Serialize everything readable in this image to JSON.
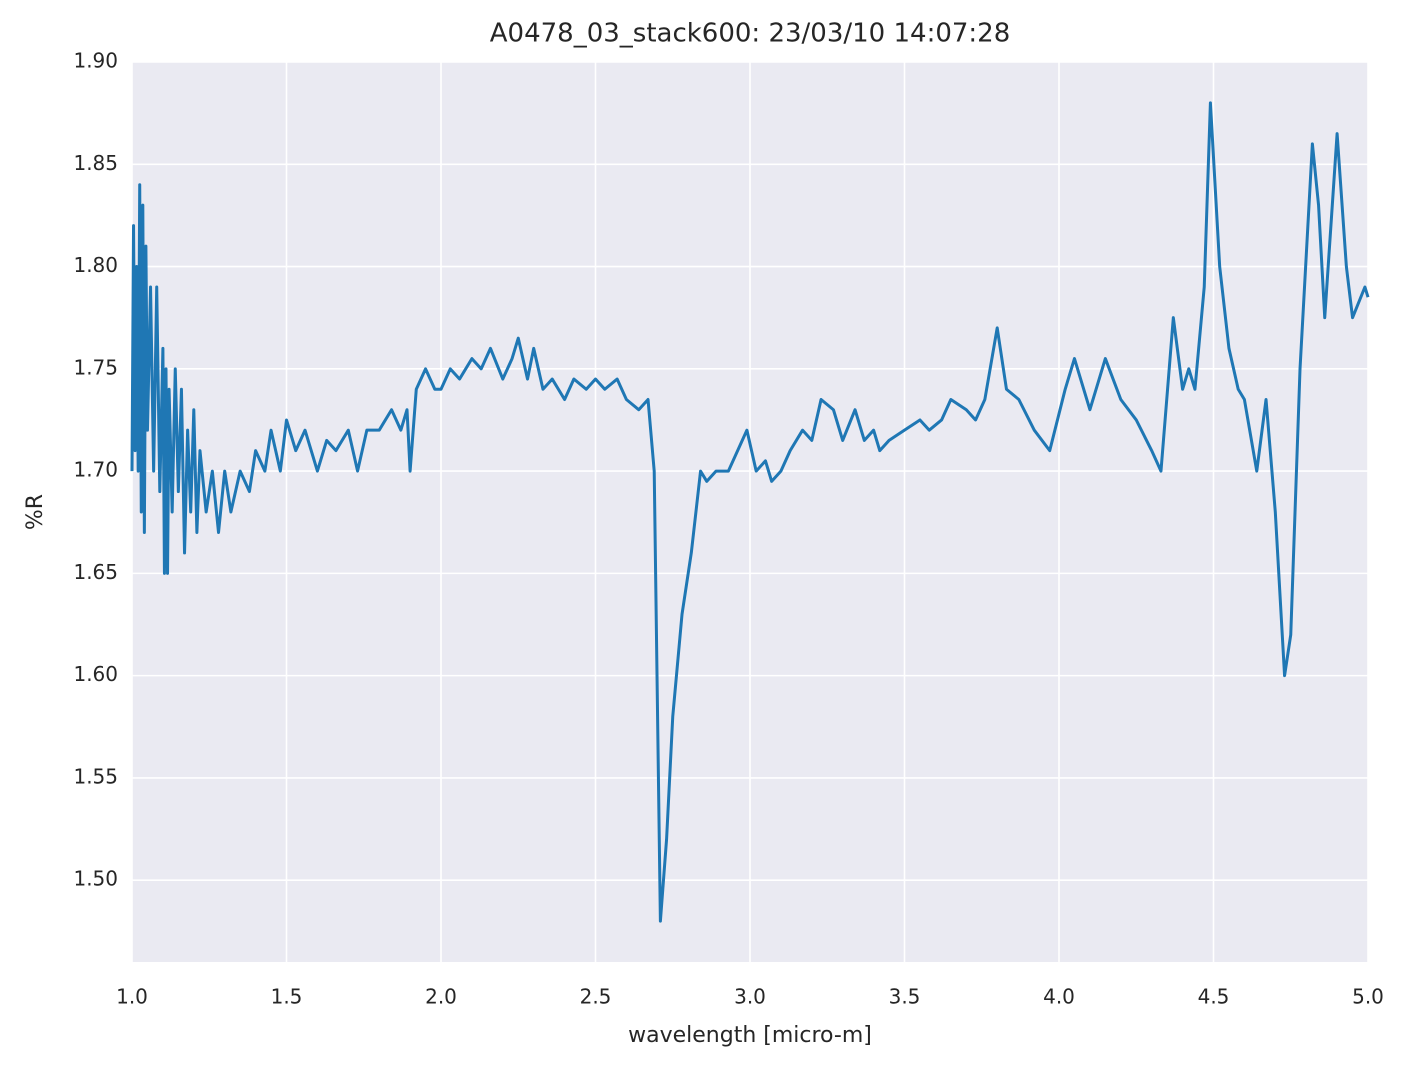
{
  "chart_data": {
    "type": "line",
    "title": "A0478_03_stack600:  23/03/10 14:07:28",
    "xlabel": "wavelength [micro-m]",
    "ylabel": "%R",
    "color": "#1f77b4",
    "grid": true,
    "xlim": [
      1.0,
      5.0
    ],
    "xticks": [
      {
        "value": 1.0,
        "label": "1.0"
      },
      1.5,
      {
        "value": 2.0,
        "label": "2.0"
      },
      2.5,
      {
        "value": 3.0,
        "label": "3.0"
      },
      3.5,
      {
        "value": 4.0,
        "label": "4.0"
      },
      4.5,
      {
        "value": 5.0,
        "label": "5.0"
      }
    ],
    "ylim": [
      1.46,
      1.9
    ],
    "yticks": [
      {
        "value": 1.5,
        "label": "1.50"
      },
      1.55,
      {
        "value": 1.6,
        "label": "1.60"
      },
      1.65,
      {
        "value": 1.7,
        "label": "1.70"
      },
      1.75,
      {
        "value": 1.8,
        "label": "1.80"
      },
      1.85,
      {
        "value": 1.9,
        "label": "1.90"
      }
    ],
    "x": [
      1.0,
      1.005,
      1.01,
      1.015,
      1.02,
      1.025,
      1.03,
      1.035,
      1.04,
      1.045,
      1.05,
      1.06,
      1.07,
      1.08,
      1.09,
      1.1,
      1.105,
      1.11,
      1.115,
      1.12,
      1.13,
      1.14,
      1.15,
      1.16,
      1.17,
      1.18,
      1.19,
      1.2,
      1.21,
      1.22,
      1.24,
      1.26,
      1.28,
      1.3,
      1.32,
      1.35,
      1.38,
      1.4,
      1.43,
      1.45,
      1.48,
      1.5,
      1.53,
      1.56,
      1.6,
      1.63,
      1.66,
      1.7,
      1.73,
      1.76,
      1.8,
      1.84,
      1.87,
      1.89,
      1.9,
      1.92,
      1.95,
      1.98,
      2.0,
      2.03,
      2.06,
      2.1,
      2.13,
      2.16,
      2.2,
      2.23,
      2.25,
      2.28,
      2.3,
      2.33,
      2.36,
      2.4,
      2.43,
      2.47,
      2.5,
      2.53,
      2.57,
      2.6,
      2.64,
      2.67,
      2.69,
      2.71,
      2.73,
      2.75,
      2.78,
      2.81,
      2.84,
      2.86,
      2.89,
      2.93,
      2.96,
      2.99,
      3.02,
      3.05,
      3.07,
      3.1,
      3.13,
      3.17,
      3.2,
      3.23,
      3.27,
      3.3,
      3.34,
      3.37,
      3.4,
      3.42,
      3.45,
      3.5,
      3.55,
      3.58,
      3.62,
      3.65,
      3.7,
      3.73,
      3.76,
      3.8,
      3.83,
      3.87,
      3.92,
      3.97,
      4.02,
      4.05,
      4.1,
      4.15,
      4.2,
      4.25,
      4.3,
      4.33,
      4.37,
      4.4,
      4.42,
      4.44,
      4.47,
      4.49,
      4.52,
      4.55,
      4.58,
      4.6,
      4.64,
      4.67,
      4.7,
      4.73,
      4.75,
      4.78,
      4.82,
      4.84,
      4.86,
      4.9,
      4.93,
      4.95,
      4.99,
      5.0
    ],
    "values": [
      1.7,
      1.82,
      1.71,
      1.8,
      1.7,
      1.84,
      1.68,
      1.83,
      1.67,
      1.81,
      1.72,
      1.79,
      1.7,
      1.79,
      1.69,
      1.76,
      1.65,
      1.75,
      1.65,
      1.74,
      1.68,
      1.75,
      1.69,
      1.74,
      1.66,
      1.72,
      1.68,
      1.73,
      1.67,
      1.71,
      1.68,
      1.7,
      1.67,
      1.7,
      1.68,
      1.7,
      1.69,
      1.71,
      1.7,
      1.72,
      1.7,
      1.725,
      1.71,
      1.72,
      1.7,
      1.715,
      1.71,
      1.72,
      1.7,
      1.72,
      1.72,
      1.73,
      1.72,
      1.73,
      1.7,
      1.74,
      1.75,
      1.74,
      1.74,
      1.75,
      1.745,
      1.755,
      1.75,
      1.76,
      1.745,
      1.755,
      1.765,
      1.745,
      1.76,
      1.74,
      1.745,
      1.735,
      1.745,
      1.74,
      1.745,
      1.74,
      1.745,
      1.735,
      1.73,
      1.735,
      1.7,
      1.48,
      1.52,
      1.58,
      1.63,
      1.66,
      1.7,
      1.695,
      1.7,
      1.7,
      1.71,
      1.72,
      1.7,
      1.705,
      1.695,
      1.7,
      1.71,
      1.72,
      1.715,
      1.735,
      1.73,
      1.715,
      1.73,
      1.715,
      1.72,
      1.71,
      1.715,
      1.72,
      1.725,
      1.72,
      1.725,
      1.735,
      1.73,
      1.725,
      1.735,
      1.77,
      1.74,
      1.735,
      1.72,
      1.71,
      1.74,
      1.755,
      1.73,
      1.755,
      1.735,
      1.725,
      1.71,
      1.7,
      1.775,
      1.74,
      1.75,
      1.74,
      1.79,
      1.88,
      1.8,
      1.76,
      1.74,
      1.735,
      1.7,
      1.735,
      1.68,
      1.6,
      1.62,
      1.75,
      1.86,
      1.83,
      1.775,
      1.865,
      1.8,
      1.775,
      1.79,
      1.785
    ]
  }
}
